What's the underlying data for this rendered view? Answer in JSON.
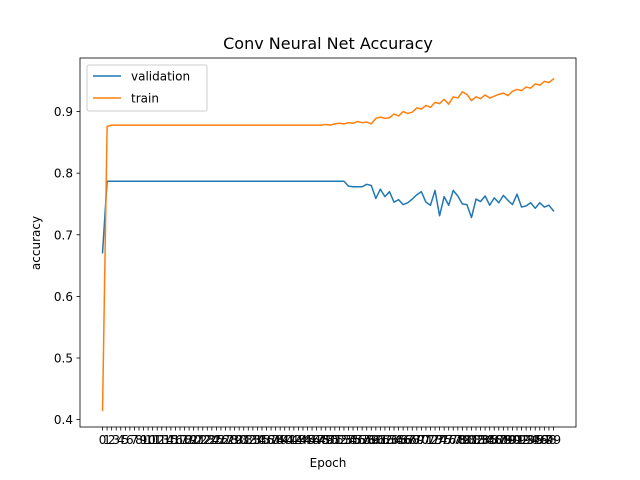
{
  "chart_data": {
    "type": "line",
    "title": "Conv Neural Net Accuracy",
    "xlabel": "Epoch",
    "ylabel": "accuracy",
    "xlim": [
      -4.95,
      103.95
    ],
    "ylim": [
      0.388,
      0.987
    ],
    "yticks": [
      0.4,
      0.5,
      0.6,
      0.7,
      0.8,
      0.9
    ],
    "ytick_labels": [
      "0.4",
      "0.5",
      "0.6",
      "0.7",
      "0.8",
      "0.9"
    ],
    "xticks": [
      0,
      1,
      2,
      3,
      4,
      5,
      6,
      7,
      8,
      9,
      10,
      11,
      12,
      13,
      14,
      15,
      16,
      17,
      18,
      19,
      20,
      21,
      22,
      23,
      24,
      25,
      26,
      27,
      28,
      29,
      30,
      31,
      32,
      33,
      34,
      35,
      36,
      37,
      38,
      39,
      40,
      41,
      42,
      43,
      44,
      45,
      46,
      47,
      48,
      49,
      50,
      51,
      52,
      53,
      54,
      55,
      56,
      57,
      58,
      59,
      60,
      61,
      62,
      63,
      64,
      65,
      66,
      67,
      68,
      69,
      70,
      71,
      72,
      73,
      74,
      75,
      76,
      77,
      78,
      79,
      80,
      81,
      82,
      83,
      84,
      85,
      86,
      87,
      88,
      89,
      90,
      91,
      92,
      93,
      94,
      95,
      96,
      97,
      98,
      99
    ],
    "grid": false,
    "legend_position": "top-left",
    "series": [
      {
        "name": "validation",
        "color": "#1f77b4",
        "values": [
          0.671,
          0.787,
          0.787,
          0.787,
          0.787,
          0.787,
          0.787,
          0.787,
          0.787,
          0.787,
          0.787,
          0.787,
          0.787,
          0.787,
          0.787,
          0.787,
          0.787,
          0.787,
          0.787,
          0.787,
          0.787,
          0.787,
          0.787,
          0.787,
          0.787,
          0.787,
          0.787,
          0.787,
          0.787,
          0.787,
          0.787,
          0.787,
          0.787,
          0.787,
          0.787,
          0.787,
          0.787,
          0.787,
          0.787,
          0.787,
          0.787,
          0.787,
          0.787,
          0.787,
          0.787,
          0.787,
          0.787,
          0.787,
          0.787,
          0.787,
          0.787,
          0.787,
          0.787,
          0.787,
          0.779,
          0.778,
          0.778,
          0.778,
          0.782,
          0.78,
          0.759,
          0.774,
          0.762,
          0.77,
          0.753,
          0.757,
          0.749,
          0.752,
          0.758,
          0.765,
          0.77,
          0.753,
          0.748,
          0.772,
          0.731,
          0.762,
          0.748,
          0.772,
          0.763,
          0.75,
          0.749,
          0.728,
          0.758,
          0.754,
          0.763,
          0.748,
          0.76,
          0.752,
          0.764,
          0.756,
          0.749,
          0.766,
          0.745,
          0.747,
          0.752,
          0.743,
          0.752,
          0.745,
          0.748,
          0.739
        ]
      },
      {
        "name": "train",
        "color": "#ff7f0e",
        "values": [
          0.415,
          0.876,
          0.878,
          0.878,
          0.878,
          0.878,
          0.878,
          0.878,
          0.878,
          0.878,
          0.878,
          0.878,
          0.878,
          0.878,
          0.878,
          0.878,
          0.878,
          0.878,
          0.878,
          0.878,
          0.878,
          0.878,
          0.878,
          0.878,
          0.878,
          0.878,
          0.878,
          0.878,
          0.878,
          0.878,
          0.878,
          0.878,
          0.878,
          0.878,
          0.878,
          0.878,
          0.878,
          0.878,
          0.878,
          0.878,
          0.878,
          0.878,
          0.878,
          0.878,
          0.878,
          0.878,
          0.878,
          0.878,
          0.878,
          0.879,
          0.878,
          0.88,
          0.881,
          0.88,
          0.882,
          0.881,
          0.884,
          0.882,
          0.883,
          0.88,
          0.889,
          0.891,
          0.889,
          0.89,
          0.896,
          0.893,
          0.9,
          0.897,
          0.899,
          0.906,
          0.904,
          0.91,
          0.907,
          0.915,
          0.913,
          0.92,
          0.912,
          0.924,
          0.922,
          0.932,
          0.928,
          0.918,
          0.924,
          0.921,
          0.927,
          0.922,
          0.925,
          0.928,
          0.93,
          0.926,
          0.933,
          0.936,
          0.934,
          0.94,
          0.938,
          0.945,
          0.943,
          0.949,
          0.947,
          0.953
        ]
      }
    ]
  }
}
